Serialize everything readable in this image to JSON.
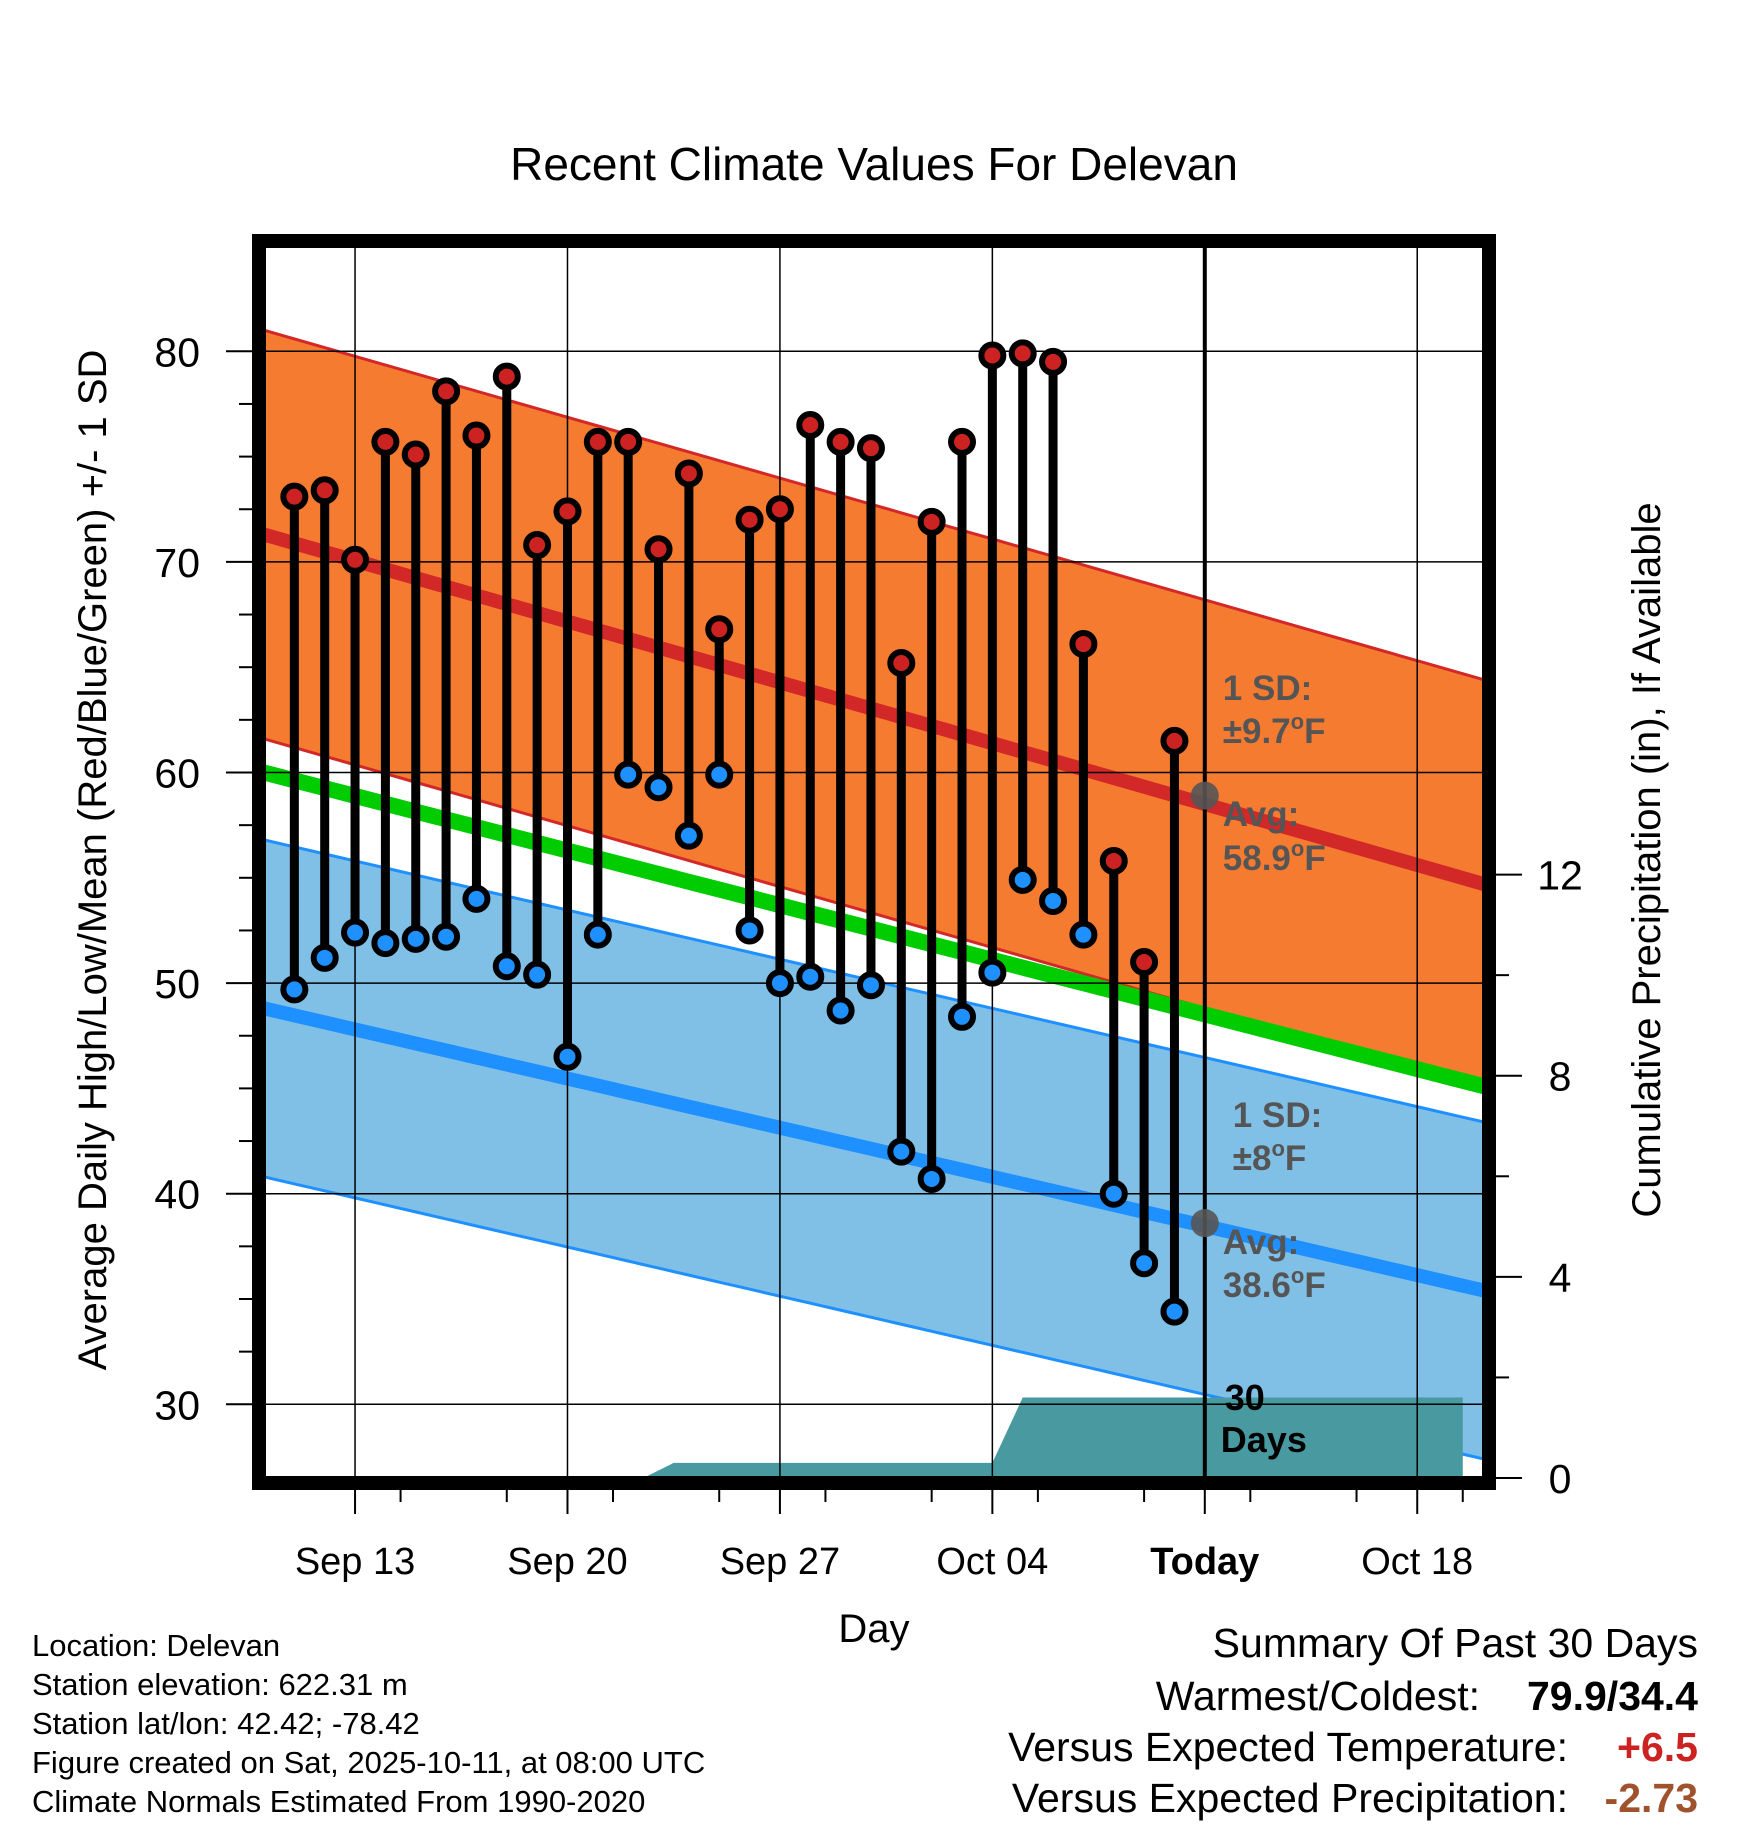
{
  "chart_data": {
    "type": "line",
    "title": "Recent Climate Values For Delevan",
    "xlabel": "Day",
    "ylabel": "Average Daily High/Low/Mean (Red/Blue/Green) +/- 1 SD",
    "y2label": "Cumulative Precipitation (in), If Available",
    "ylim": [
      26.5,
      85
    ],
    "y2lim": [
      0,
      24.5
    ],
    "x_ticks": [
      "Sep 13",
      "Sep 20",
      "Sep 27",
      "Oct 04",
      "Today",
      "Oct 18"
    ],
    "y_ticks": [
      30,
      40,
      50,
      60,
      70,
      80
    ],
    "y2_ticks": [
      0,
      4,
      8,
      12
    ],
    "days": [
      "Sep 11",
      "Sep 12",
      "Sep 13",
      "Sep 14",
      "Sep 15",
      "Sep 16",
      "Sep 17",
      "Sep 18",
      "Sep 19",
      "Sep 20",
      "Sep 21",
      "Sep 22",
      "Sep 23",
      "Sep 24",
      "Sep 25",
      "Sep 26",
      "Sep 27",
      "Sep 28",
      "Sep 29",
      "Sep 30",
      "Oct 01",
      "Oct 02",
      "Oct 03",
      "Oct 04",
      "Oct 05",
      "Oct 06",
      "Oct 07",
      "Oct 08",
      "Oct 09",
      "Oct 10"
    ],
    "highs": [
      73.1,
      73.4,
      70.1,
      75.7,
      75.1,
      78.1,
      76.0,
      78.8,
      70.8,
      72.4,
      75.7,
      75.7,
      70.6,
      74.2,
      66.8,
      72.0,
      72.5,
      76.5,
      75.7,
      75.4,
      65.2,
      71.9,
      75.7,
      79.8,
      79.9,
      79.5,
      66.1,
      55.8,
      51.0,
      61.5
    ],
    "lows": [
      49.7,
      51.2,
      52.4,
      51.9,
      52.1,
      52.2,
      54.0,
      50.8,
      50.4,
      46.5,
      52.3,
      59.9,
      59.3,
      57.0,
      59.9,
      52.5,
      50.0,
      50.3,
      48.7,
      49.9,
      42.0,
      40.7,
      48.4,
      50.5,
      54.9,
      53.9,
      52.3,
      40.0,
      36.7,
      34.4
    ],
    "normal_high": {
      "start": 71.3,
      "end": 54.7,
      "sd": 9.7,
      "today_avg": 58.9
    },
    "normal_low": {
      "start": 48.8,
      "end": 35.4,
      "sd": 8,
      "today_avg": 38.6
    },
    "normal_mean": {
      "start": 60.0,
      "end": 45.1
    },
    "precip_cumulative": [
      {
        "day": 12.5,
        "in": 0
      },
      {
        "day": 13.5,
        "in": 0.3
      },
      {
        "day": 24,
        "in": 0.3
      },
      {
        "day": 25,
        "in": 1.6
      },
      {
        "day": 39.5,
        "in": 1.6
      }
    ],
    "annotations": {
      "high_sd_label": "1 SD:",
      "high_sd_value": "±9.7",
      "high_sd_unit": "F",
      "high_avg_label": "Avg:",
      "high_avg_value": "58.9",
      "high_avg_unit": "F",
      "low_sd_label": "1 SD:",
      "low_sd_value": "±8",
      "low_sd_unit": "F",
      "low_avg_label": "Avg:",
      "low_avg_value": "38.6",
      "low_avg_unit": "F",
      "deg_symbol": "o",
      "window_label_1": "30",
      "window_label_2": "Days"
    },
    "colors": {
      "high_band": "#f47b30",
      "high_line": "#d32828",
      "low_band": "#80bfe6",
      "low_line": "#1e90ff",
      "mean_line": "#00cc00",
      "precip": "#4899a0",
      "high_dot": "#cc2222",
      "low_dot": "#1e90ff",
      "annotation_text": "#555555"
    }
  },
  "footer": {
    "location": "Location: Delevan",
    "elevation": "Station elevation: 622.31 m",
    "latlon": "Station lat/lon: 42.42; -78.42",
    "created": "Figure created on Sat, 2025-10-11, at 08:00 UTC",
    "normals": "Climate Normals Estimated From 1990-2020"
  },
  "summary": {
    "title": "Summary Of Past 30 Days",
    "warm_cold_label": "Warmest/Coldest:",
    "warm_cold_value": "79.9/34.4",
    "temp_label": "Versus Expected Temperature:",
    "temp_value": "+6.5",
    "temp_color": "#cc2222",
    "precip_label": "Versus Expected Precipitation:",
    "precip_value": "-2.73",
    "precip_color": "#a0522d"
  }
}
